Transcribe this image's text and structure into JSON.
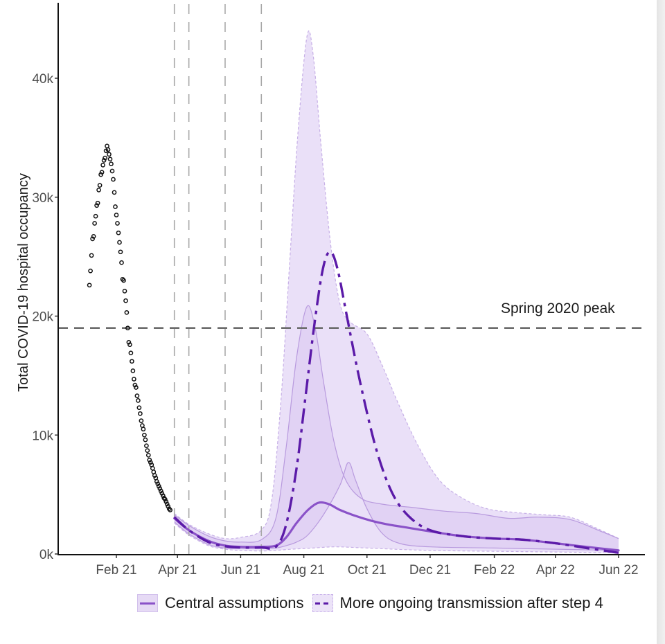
{
  "chart_data": {
    "type": "line",
    "title": "",
    "xlabel": "",
    "ylabel": "Total COVID-19 hospital occupancy",
    "x_type": "date",
    "xlim": [
      "2021-01-01",
      "2022-06-25"
    ],
    "ylim": [
      0,
      45000
    ],
    "x_ticks": [
      {
        "date": "2021-02-01",
        "label": "Feb 21"
      },
      {
        "date": "2021-04-01",
        "label": "Apr 21"
      },
      {
        "date": "2021-06-01",
        "label": "Jun 21"
      },
      {
        "date": "2021-08-01",
        "label": "Aug 21"
      },
      {
        "date": "2021-10-01",
        "label": "Oct 21"
      },
      {
        "date": "2021-12-01",
        "label": "Dec 21"
      },
      {
        "date": "2022-02-01",
        "label": "Feb 22"
      },
      {
        "date": "2022-04-01",
        "label": "Apr 22"
      },
      {
        "date": "2022-06-01",
        "label": "Jun 22"
      }
    ],
    "y_ticks": [
      {
        "value": 0,
        "label": "0k"
      },
      {
        "value": 10000,
        "label": "10k"
      },
      {
        "value": 20000,
        "label": "20k"
      },
      {
        "value": 30000,
        "label": "30k"
      },
      {
        "value": 40000,
        "label": "40k"
      }
    ],
    "grid": false,
    "legend_position": "bottom",
    "reference_lines": {
      "horizontal": {
        "value": 19000,
        "label": "Spring 2020 peak"
      },
      "vertical_dates": [
        "2021-03-29",
        "2021-04-12",
        "2021-05-17",
        "2021-06-21"
      ]
    },
    "observed": {
      "name": "Observed",
      "points": [
        [
          "2021-01-06",
          22600
        ],
        [
          "2021-01-07",
          23800
        ],
        [
          "2021-01-08",
          25100
        ],
        [
          "2021-01-09",
          26500
        ],
        [
          "2021-01-10",
          26700
        ],
        [
          "2021-01-11",
          27800
        ],
        [
          "2021-01-12",
          28400
        ],
        [
          "2021-01-13",
          29300
        ],
        [
          "2021-01-14",
          29500
        ],
        [
          "2021-01-15",
          30600
        ],
        [
          "2021-01-16",
          31000
        ],
        [
          "2021-01-17",
          31900
        ],
        [
          "2021-01-18",
          32100
        ],
        [
          "2021-01-19",
          32700
        ],
        [
          "2021-01-20",
          33100
        ],
        [
          "2021-01-21",
          33300
        ],
        [
          "2021-01-22",
          33900
        ],
        [
          "2021-01-23",
          34300
        ],
        [
          "2021-01-24",
          34000
        ],
        [
          "2021-01-25",
          33600
        ],
        [
          "2021-01-26",
          33200
        ],
        [
          "2021-01-27",
          32800
        ],
        [
          "2021-01-28",
          32200
        ],
        [
          "2021-01-29",
          31500
        ],
        [
          "2021-01-30",
          30400
        ],
        [
          "2021-01-31",
          29200
        ],
        [
          "2021-02-01",
          28500
        ],
        [
          "2021-02-02",
          27800
        ],
        [
          "2021-02-03",
          27000
        ],
        [
          "2021-02-04",
          26200
        ],
        [
          "2021-02-05",
          25400
        ],
        [
          "2021-02-06",
          24500
        ],
        [
          "2021-02-07",
          23100
        ],
        [
          "2021-02-08",
          23000
        ],
        [
          "2021-02-09",
          22100
        ],
        [
          "2021-02-10",
          21300
        ],
        [
          "2021-02-11",
          20300
        ],
        [
          "2021-02-12",
          19000
        ],
        [
          "2021-02-13",
          17800
        ],
        [
          "2021-02-14",
          17600
        ],
        [
          "2021-02-15",
          16900
        ],
        [
          "2021-02-16",
          16200
        ],
        [
          "2021-02-17",
          15400
        ],
        [
          "2021-02-18",
          14700
        ],
        [
          "2021-02-19",
          14200
        ],
        [
          "2021-02-20",
          14000
        ],
        [
          "2021-02-21",
          13300
        ],
        [
          "2021-02-22",
          12900
        ],
        [
          "2021-02-23",
          12300
        ],
        [
          "2021-02-24",
          11800
        ],
        [
          "2021-02-25",
          11200
        ],
        [
          "2021-02-26",
          10800
        ],
        [
          "2021-02-27",
          10500
        ],
        [
          "2021-02-28",
          10000
        ],
        [
          "2021-03-01",
          9600
        ],
        [
          "2021-03-02",
          9100
        ],
        [
          "2021-03-03",
          8700
        ],
        [
          "2021-03-04",
          8300
        ],
        [
          "2021-03-05",
          7900
        ],
        [
          "2021-03-06",
          7700
        ],
        [
          "2021-03-07",
          7500
        ],
        [
          "2021-03-08",
          7200
        ],
        [
          "2021-03-09",
          6900
        ],
        [
          "2021-03-10",
          6600
        ],
        [
          "2021-03-11",
          6400
        ],
        [
          "2021-03-12",
          6100
        ],
        [
          "2021-03-13",
          5900
        ],
        [
          "2021-03-14",
          5700
        ],
        [
          "2021-03-15",
          5500
        ],
        [
          "2021-03-16",
          5300
        ],
        [
          "2021-03-17",
          5100
        ],
        [
          "2021-03-18",
          4900
        ],
        [
          "2021-03-19",
          4700
        ],
        [
          "2021-03-20",
          4600
        ],
        [
          "2021-03-21",
          4400
        ],
        [
          "2021-03-22",
          4200
        ],
        [
          "2021-03-23",
          4000
        ],
        [
          "2021-03-24",
          3800
        ],
        [
          "2021-03-25",
          3700
        ]
      ]
    },
    "series": [
      {
        "name": "Central assumptions",
        "style": "solid",
        "color": "#8a52c8",
        "line": [
          [
            "2021-03-29",
            3000
          ],
          [
            "2021-04-12",
            2000
          ],
          [
            "2021-05-01",
            1100
          ],
          [
            "2021-05-17",
            700
          ],
          [
            "2021-06-01",
            600
          ],
          [
            "2021-06-21",
            600
          ],
          [
            "2021-07-05",
            700
          ],
          [
            "2021-07-15",
            1400
          ],
          [
            "2021-07-25",
            2600
          ],
          [
            "2021-08-05",
            3700
          ],
          [
            "2021-08-15",
            4300
          ],
          [
            "2021-08-25",
            4200
          ],
          [
            "2021-09-05",
            3700
          ],
          [
            "2021-09-20",
            3200
          ],
          [
            "2021-10-05",
            2800
          ],
          [
            "2021-10-20",
            2500
          ],
          [
            "2021-11-10",
            2200
          ],
          [
            "2021-12-01",
            1900
          ],
          [
            "2022-01-01",
            1500
          ],
          [
            "2022-02-01",
            1300
          ],
          [
            "2022-03-01",
            1200
          ],
          [
            "2022-04-01",
            900
          ],
          [
            "2022-05-01",
            600
          ],
          [
            "2022-06-01",
            300
          ]
        ],
        "upper": [
          [
            "2021-03-29",
            3300
          ],
          [
            "2021-04-12",
            2400
          ],
          [
            "2021-05-01",
            1500
          ],
          [
            "2021-05-17",
            1100
          ],
          [
            "2021-06-01",
            1000
          ],
          [
            "2021-06-21",
            1200
          ],
          [
            "2021-07-05",
            3000
          ],
          [
            "2021-07-15",
            9000
          ],
          [
            "2021-07-25",
            16500
          ],
          [
            "2021-08-04",
            20800
          ],
          [
            "2021-08-12",
            19000
          ],
          [
            "2021-08-20",
            14500
          ],
          [
            "2021-08-30",
            9500
          ],
          [
            "2021-09-10",
            6300
          ],
          [
            "2021-09-25",
            4700
          ],
          [
            "2021-10-15",
            4200
          ],
          [
            "2021-11-15",
            3900
          ],
          [
            "2021-12-15",
            3600
          ],
          [
            "2022-01-15",
            3400
          ],
          [
            "2022-02-15",
            3000
          ],
          [
            "2022-03-15",
            3100
          ],
          [
            "2022-04-15",
            2900
          ],
          [
            "2022-05-15",
            1900
          ],
          [
            "2022-06-01",
            1300
          ]
        ],
        "lower": [
          [
            "2021-03-29",
            2700
          ],
          [
            "2021-04-12",
            1700
          ],
          [
            "2021-05-01",
            800
          ],
          [
            "2021-05-17",
            500
          ],
          [
            "2021-06-01",
            450
          ],
          [
            "2021-06-21",
            450
          ],
          [
            "2021-07-05",
            500
          ],
          [
            "2021-07-15",
            700
          ],
          [
            "2021-07-25",
            1000
          ],
          [
            "2021-08-05",
            1600
          ],
          [
            "2021-08-20",
            3300
          ],
          [
            "2021-09-05",
            5800
          ],
          [
            "2021-09-13",
            7700
          ],
          [
            "2021-09-20",
            6200
          ],
          [
            "2021-10-01",
            3800
          ],
          [
            "2021-10-15",
            1800
          ],
          [
            "2021-11-01",
            900
          ],
          [
            "2021-12-01",
            600
          ],
          [
            "2022-02-01",
            500
          ],
          [
            "2022-06-01",
            300
          ]
        ]
      },
      {
        "name": "More ongoing transmission after step 4",
        "style": "dashdot",
        "color": "#5b1aa8",
        "line": [
          [
            "2021-03-29",
            3100
          ],
          [
            "2021-04-12",
            2000
          ],
          [
            "2021-05-01",
            1000
          ],
          [
            "2021-05-17",
            650
          ],
          [
            "2021-06-01",
            550
          ],
          [
            "2021-06-21",
            550
          ],
          [
            "2021-07-05",
            600
          ],
          [
            "2021-07-15",
            2500
          ],
          [
            "2021-07-25",
            7200
          ],
          [
            "2021-08-03",
            13500
          ],
          [
            "2021-08-12",
            19800
          ],
          [
            "2021-08-20",
            24200
          ],
          [
            "2021-08-27",
            25400
          ],
          [
            "2021-09-03",
            23800
          ],
          [
            "2021-09-12",
            19800
          ],
          [
            "2021-09-25",
            14200
          ],
          [
            "2021-10-10",
            8800
          ],
          [
            "2021-10-25",
            5200
          ],
          [
            "2021-11-10",
            3200
          ],
          [
            "2021-12-01",
            2000
          ],
          [
            "2022-01-01",
            1500
          ],
          [
            "2022-02-01",
            1300
          ],
          [
            "2022-03-01",
            1200
          ],
          [
            "2022-04-01",
            900
          ],
          [
            "2022-05-01",
            500
          ],
          [
            "2022-06-01",
            100
          ]
        ],
        "upper": [
          [
            "2021-03-29",
            3400
          ],
          [
            "2021-04-12",
            2500
          ],
          [
            "2021-05-01",
            1700
          ],
          [
            "2021-05-17",
            1300
          ],
          [
            "2021-06-01",
            1400
          ],
          [
            "2021-06-21",
            2000
          ],
          [
            "2021-07-01",
            4500
          ],
          [
            "2021-07-10",
            13000
          ],
          [
            "2021-07-18",
            24000
          ],
          [
            "2021-07-26",
            35000
          ],
          [
            "2021-08-04",
            43500
          ],
          [
            "2021-08-10",
            42000
          ],
          [
            "2021-08-18",
            34000
          ],
          [
            "2021-08-27",
            26000
          ],
          [
            "2021-09-05",
            21000
          ],
          [
            "2021-09-15",
            19500
          ],
          [
            "2021-10-01",
            18500
          ],
          [
            "2021-10-15",
            16000
          ],
          [
            "2021-11-01",
            12500
          ],
          [
            "2021-11-20",
            9000
          ],
          [
            "2021-12-10",
            6200
          ],
          [
            "2022-01-01",
            4700
          ],
          [
            "2022-01-25",
            3800
          ],
          [
            "2022-02-20",
            3500
          ],
          [
            "2022-03-20",
            3300
          ],
          [
            "2022-04-15",
            3100
          ],
          [
            "2022-05-10",
            2200
          ],
          [
            "2022-06-01",
            1300
          ]
        ],
        "lower": [
          [
            "2021-03-29",
            2600
          ],
          [
            "2021-04-12",
            1600
          ],
          [
            "2021-05-01",
            700
          ],
          [
            "2021-05-17",
            400
          ],
          [
            "2021-06-01",
            300
          ],
          [
            "2021-06-21",
            250
          ],
          [
            "2021-07-05",
            300
          ],
          [
            "2021-07-20",
            400
          ],
          [
            "2021-08-10",
            500
          ],
          [
            "2021-09-01",
            600
          ],
          [
            "2021-10-01",
            500
          ],
          [
            "2021-12-01",
            300
          ],
          [
            "2022-03-01",
            200
          ],
          [
            "2022-06-01",
            100
          ]
        ]
      }
    ]
  },
  "legend": {
    "items": [
      {
        "label": "Central assumptions"
      },
      {
        "label": "More ongoing transmission after step 4"
      }
    ]
  }
}
